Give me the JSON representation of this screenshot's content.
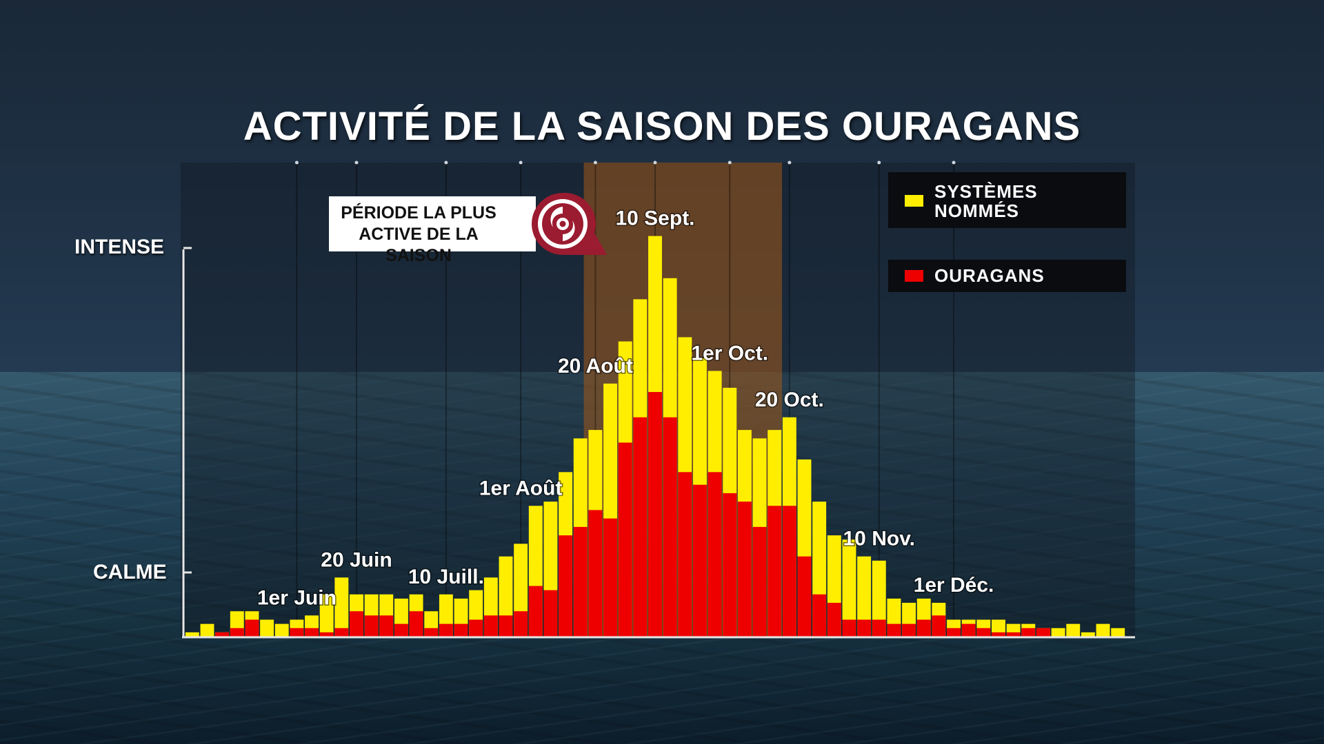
{
  "title": "ACTIVITÉ DE LA SAISON DES OURAGANS",
  "y_labels": {
    "high": "INTENSE",
    "low": "CALME"
  },
  "callout": {
    "line1": "PÉRIODE LA PLUS",
    "line2": "ACTIVE DE LA SAISON",
    "icon": "hurricane-icon"
  },
  "legend": {
    "named_line1": "SYSTÈMES",
    "named_line2": "NOMMÉS",
    "hurricanes": "OURAGANS"
  },
  "colors": {
    "named": "#ffee00",
    "hurricanes": "#ee0000",
    "peak_band": "#a35a1a",
    "callout_icon": "#9b1b30"
  },
  "chart_data": {
    "type": "bar",
    "title": "ACTIVITÉ DE LA SAISON DES OURAGANS",
    "xlabel": "",
    "ylabel": "",
    "y_scale_labels": [
      "CALME",
      "INTENSE"
    ],
    "bar_mode": "overlay",
    "grid": true,
    "legend_position": "top-right",
    "highlight_range": {
      "from_index": 27,
      "to_index": 39,
      "label": "PÉRIODE LA PLUS ACTIVE DE LA SAISON"
    },
    "date_labels": [
      {
        "text": "1er Juin",
        "index": 7
      },
      {
        "text": "20 Juin",
        "index": 11
      },
      {
        "text": "10 Juill.",
        "index": 17
      },
      {
        "text": "1er Août",
        "index": 22
      },
      {
        "text": "20 Août",
        "index": 27
      },
      {
        "text": "10 Sept.",
        "index": 31
      },
      {
        "text": "1er Oct.",
        "index": 36
      },
      {
        "text": "20 Oct.",
        "index": 40
      },
      {
        "text": "10 Nov.",
        "index": 46
      },
      {
        "text": "1er Déc.",
        "index": 51
      }
    ],
    "series": [
      {
        "name": "SYSTÈMES NOMMÉS",
        "values": [
          1,
          3,
          1,
          6,
          6,
          4,
          3,
          4,
          5,
          10,
          14,
          10,
          10,
          10,
          9,
          10,
          6,
          10,
          9,
          11,
          14,
          19,
          22,
          31,
          32,
          39,
          47,
          49,
          60,
          70,
          80,
          95,
          85,
          71,
          66,
          63,
          59,
          49,
          47,
          49,
          52,
          42,
          32,
          24,
          23,
          19,
          18,
          9,
          8,
          9,
          8,
          4,
          4,
          4,
          4,
          3,
          3,
          2,
          2,
          3,
          1,
          3,
          2
        ]
      },
      {
        "name": "OURAGANS",
        "values": [
          0,
          0,
          1,
          2,
          4,
          0,
          0,
          2,
          2,
          1,
          2,
          6,
          5,
          5,
          3,
          6,
          2,
          3,
          3,
          4,
          5,
          5,
          6,
          12,
          11,
          24,
          26,
          30,
          28,
          46,
          52,
          58,
          52,
          39,
          36,
          39,
          34,
          32,
          26,
          31,
          31,
          19,
          10,
          8,
          4,
          4,
          4,
          3,
          3,
          4,
          5,
          2,
          3,
          2,
          1,
          1,
          2,
          2,
          0,
          0,
          0,
          0,
          0
        ]
      }
    ],
    "ylim": [
      0,
      100
    ]
  }
}
